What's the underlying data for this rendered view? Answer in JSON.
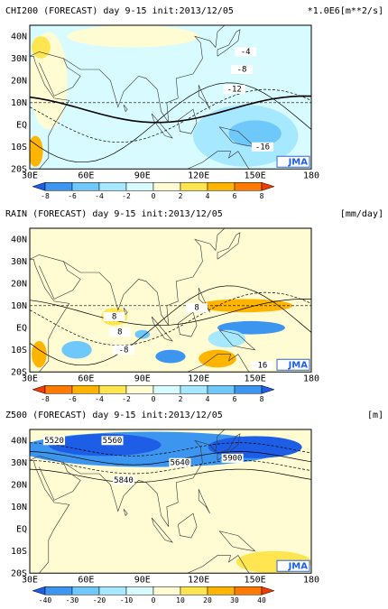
{
  "panels": [
    {
      "title": "CHI200 (FORECAST) day 9-15 init:2013/12/05",
      "units": "*1.0E6[m**2/s]",
      "lat_labels": [
        "40N",
        "30N",
        "20N",
        "10N",
        "EQ",
        "10S",
        "20S"
      ],
      "lon_labels": [
        "30E",
        "60E",
        "90E",
        "120E",
        "150E",
        "180"
      ],
      "colorbar": {
        "labels": [
          -8,
          -6,
          -4,
          -2,
          0,
          2,
          4,
          6,
          8
        ],
        "colors": [
          "#1e5ee6",
          "#3c96f0",
          "#6ec8fa",
          "#a6e8ff",
          "#d8fbff",
          "#fffbd2",
          "#ffe650",
          "#ffb400",
          "#ff7a00",
          "#f03c00"
        ]
      },
      "contour_labels": [
        "-4",
        "-8",
        "-12",
        "-16"
      ],
      "logo": "JMA"
    },
    {
      "title": "RAIN (FORECAST) day 9-15 init:2013/12/05",
      "units": "[mm/day]",
      "lat_labels": [
        "40N",
        "30N",
        "20N",
        "10N",
        "EQ",
        "10S",
        "20S"
      ],
      "lon_labels": [
        "30E",
        "60E",
        "90E",
        "120E",
        "150E",
        "180"
      ],
      "colorbar": {
        "labels": [
          -8,
          -6,
          -4,
          -2,
          0,
          2,
          4,
          6,
          8
        ],
        "colors": [
          "#f03c00",
          "#ff7a00",
          "#ffb400",
          "#ffe650",
          "#fffbd2",
          "#d8fbff",
          "#a6e8ff",
          "#6ec8fa",
          "#3c96f0",
          "#1e5ee6"
        ]
      },
      "contour_labels": [
        "8",
        "8",
        "8",
        "-8",
        "16"
      ],
      "logo": "JMA"
    },
    {
      "title": "Z500 (FORECAST) day 9-15 init:2013/12/05",
      "units": "[m]",
      "lat_labels": [
        "40N",
        "30N",
        "20N",
        "10N",
        "EQ",
        "10S",
        "20S"
      ],
      "lon_labels": [
        "30E",
        "60E",
        "90E",
        "120E",
        "150E",
        "180"
      ],
      "colorbar": {
        "labels": [
          -40,
          -30,
          -20,
          -10,
          0,
          10,
          20,
          30,
          40
        ],
        "colors": [
          "#1e5ee6",
          "#3c96f0",
          "#6ec8fa",
          "#a6e8ff",
          "#d8fbff",
          "#fffbd2",
          "#ffe650",
          "#ffb400",
          "#ff7a00",
          "#f03c00"
        ]
      },
      "contour_labels": [
        "5520",
        "5560",
        "5640",
        "5900",
        "5840"
      ],
      "logo": "JMA"
    }
  ]
}
